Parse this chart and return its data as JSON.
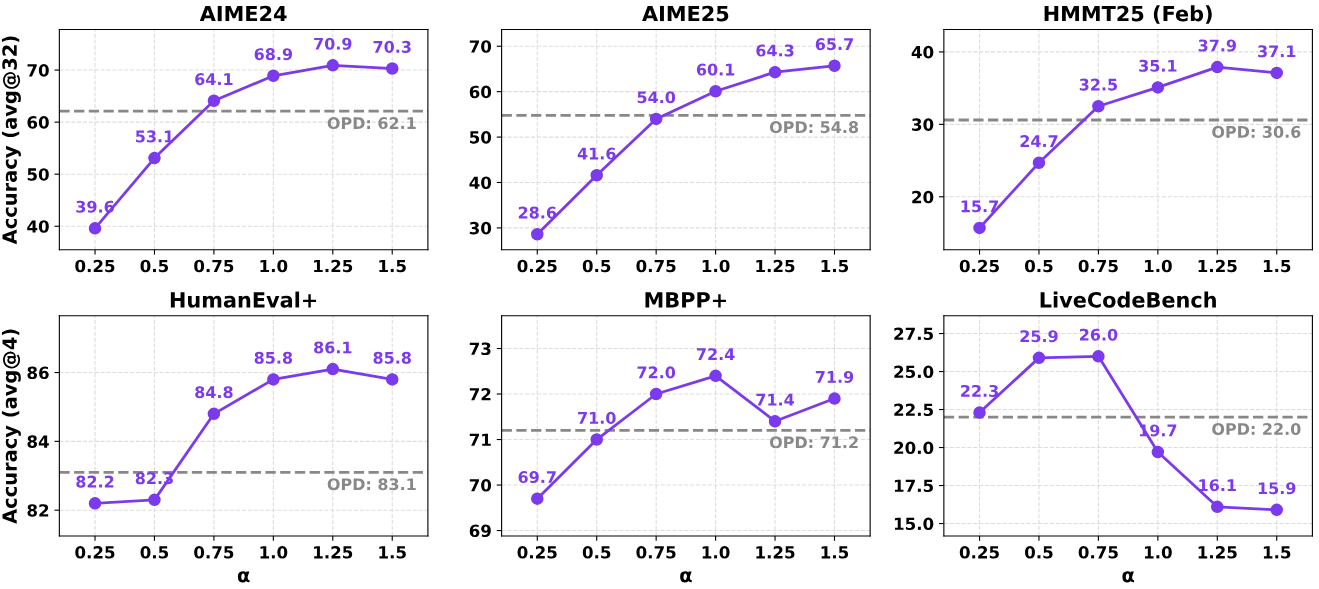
{
  "chart_data": [
    {
      "type": "line",
      "title": "AIME24",
      "ylabel": "Accuracy (avg@32)",
      "categories": [
        "0.25",
        "0.5",
        "0.75",
        "1.0",
        "1.25",
        "1.5"
      ],
      "series": [
        {
          "color": "#7c3aed",
          "values": [
            39.6,
            53.1,
            64.1,
            68.9,
            70.9,
            70.3
          ],
          "value_labels": [
            "39.6",
            "53.1",
            "64.1",
            "68.9",
            "70.9",
            "70.3"
          ]
        }
      ],
      "ylim": [
        35.5,
        77.8
      ],
      "yticks": [
        40,
        50,
        60,
        70
      ],
      "ref_lines": [
        {
          "axis": "y",
          "value": 62.1,
          "label": "OPD: 62.1",
          "color": "#888888",
          "line_style": "dashed"
        }
      ],
      "grid": true,
      "marker": "circle",
      "line_style": "solid"
    },
    {
      "type": "line",
      "title": "AIME25",
      "categories": [
        "0.25",
        "0.5",
        "0.75",
        "1.0",
        "1.25",
        "1.5"
      ],
      "series": [
        {
          "color": "#7c3aed",
          "values": [
            28.6,
            41.6,
            54.0,
            60.1,
            64.3,
            65.7
          ],
          "value_labels": [
            "28.6",
            "41.6",
            "54.0",
            "60.1",
            "64.3",
            "65.7"
          ]
        }
      ],
      "ylim": [
        25.2,
        73.7
      ],
      "yticks": [
        30,
        40,
        50,
        60,
        70
      ],
      "ref_lines": [
        {
          "axis": "y",
          "value": 54.8,
          "label": "OPD: 54.8",
          "color": "#888888",
          "line_style": "dashed"
        }
      ],
      "grid": true,
      "marker": "circle",
      "line_style": "solid"
    },
    {
      "type": "line",
      "title": "HMMT25 (Feb)",
      "categories": [
        "0.25",
        "0.5",
        "0.75",
        "1.0",
        "1.25",
        "1.5"
      ],
      "series": [
        {
          "color": "#7c3aed",
          "values": [
            15.7,
            24.7,
            32.5,
            35.1,
            37.9,
            37.1
          ],
          "value_labels": [
            "15.7",
            "24.7",
            "32.5",
            "35.1",
            "37.9",
            "37.1"
          ]
        }
      ],
      "ylim": [
        12.7,
        43.1
      ],
      "yticks": [
        20,
        30,
        40
      ],
      "ref_lines": [
        {
          "axis": "y",
          "value": 30.6,
          "label": "OPD: 30.6",
          "color": "#888888",
          "line_style": "dashed"
        }
      ],
      "grid": true,
      "marker": "circle",
      "line_style": "solid"
    },
    {
      "type": "line",
      "title": "HumanEval+",
      "xlabel": "α",
      "ylabel": "Accuracy (avg@4)",
      "categories": [
        "0.25",
        "0.5",
        "0.75",
        "1.0",
        "1.25",
        "1.5"
      ],
      "series": [
        {
          "color": "#7c3aed",
          "values": [
            82.2,
            82.3,
            84.8,
            85.8,
            86.1,
            85.8
          ],
          "value_labels": [
            "82.2",
            "82.3",
            "84.8",
            "85.8",
            "86.1",
            "85.8"
          ]
        }
      ],
      "ylim": [
        81.25,
        87.65
      ],
      "yticks": [
        82,
        84,
        86
      ],
      "ref_lines": [
        {
          "axis": "y",
          "value": 83.1,
          "label": "OPD: 83.1",
          "color": "#888888",
          "line_style": "dashed"
        }
      ],
      "grid": true,
      "marker": "circle",
      "line_style": "solid"
    },
    {
      "type": "line",
      "title": "MBPP+",
      "xlabel": "α",
      "categories": [
        "0.25",
        "0.5",
        "0.75",
        "1.0",
        "1.25",
        "1.5"
      ],
      "series": [
        {
          "color": "#7c3aed",
          "values": [
            69.7,
            71.0,
            72.0,
            72.4,
            71.4,
            71.9
          ],
          "value_labels": [
            "69.7",
            "71.0",
            "72.0",
            "72.4",
            "71.4",
            "71.9"
          ]
        }
      ],
      "ylim": [
        68.88,
        73.72
      ],
      "yticks": [
        69,
        70,
        71,
        72,
        73
      ],
      "ref_lines": [
        {
          "axis": "y",
          "value": 71.2,
          "label": "OPD: 71.2",
          "color": "#888888",
          "line_style": "dashed"
        }
      ],
      "grid": true,
      "marker": "circle",
      "line_style": "solid"
    },
    {
      "type": "line",
      "title": "LiveCodeBench",
      "xlabel": "α",
      "categories": [
        "0.25",
        "0.5",
        "0.75",
        "1.0",
        "1.25",
        "1.5"
      ],
      "series": [
        {
          "color": "#7c3aed",
          "values": [
            22.3,
            25.9,
            26.0,
            19.7,
            16.1,
            15.9
          ],
          "value_labels": [
            "22.3",
            "25.9",
            "26.0",
            "19.7",
            "16.1",
            "15.9"
          ]
        }
      ],
      "ylim": [
        14.18,
        28.67
      ],
      "yticks": [
        {
          "value": 15,
          "label": "15.0"
        },
        17.5,
        {
          "value": 20,
          "label": "20.0"
        },
        22.5,
        {
          "value": 25,
          "label": "25.0"
        },
        27.5
      ],
      "ref_lines": [
        {
          "axis": "y",
          "value": 22.0,
          "label": "OPD: 22.0",
          "color": "#888888",
          "line_style": "dashed"
        }
      ],
      "grid": true,
      "marker": "circle",
      "line_style": "solid"
    }
  ]
}
